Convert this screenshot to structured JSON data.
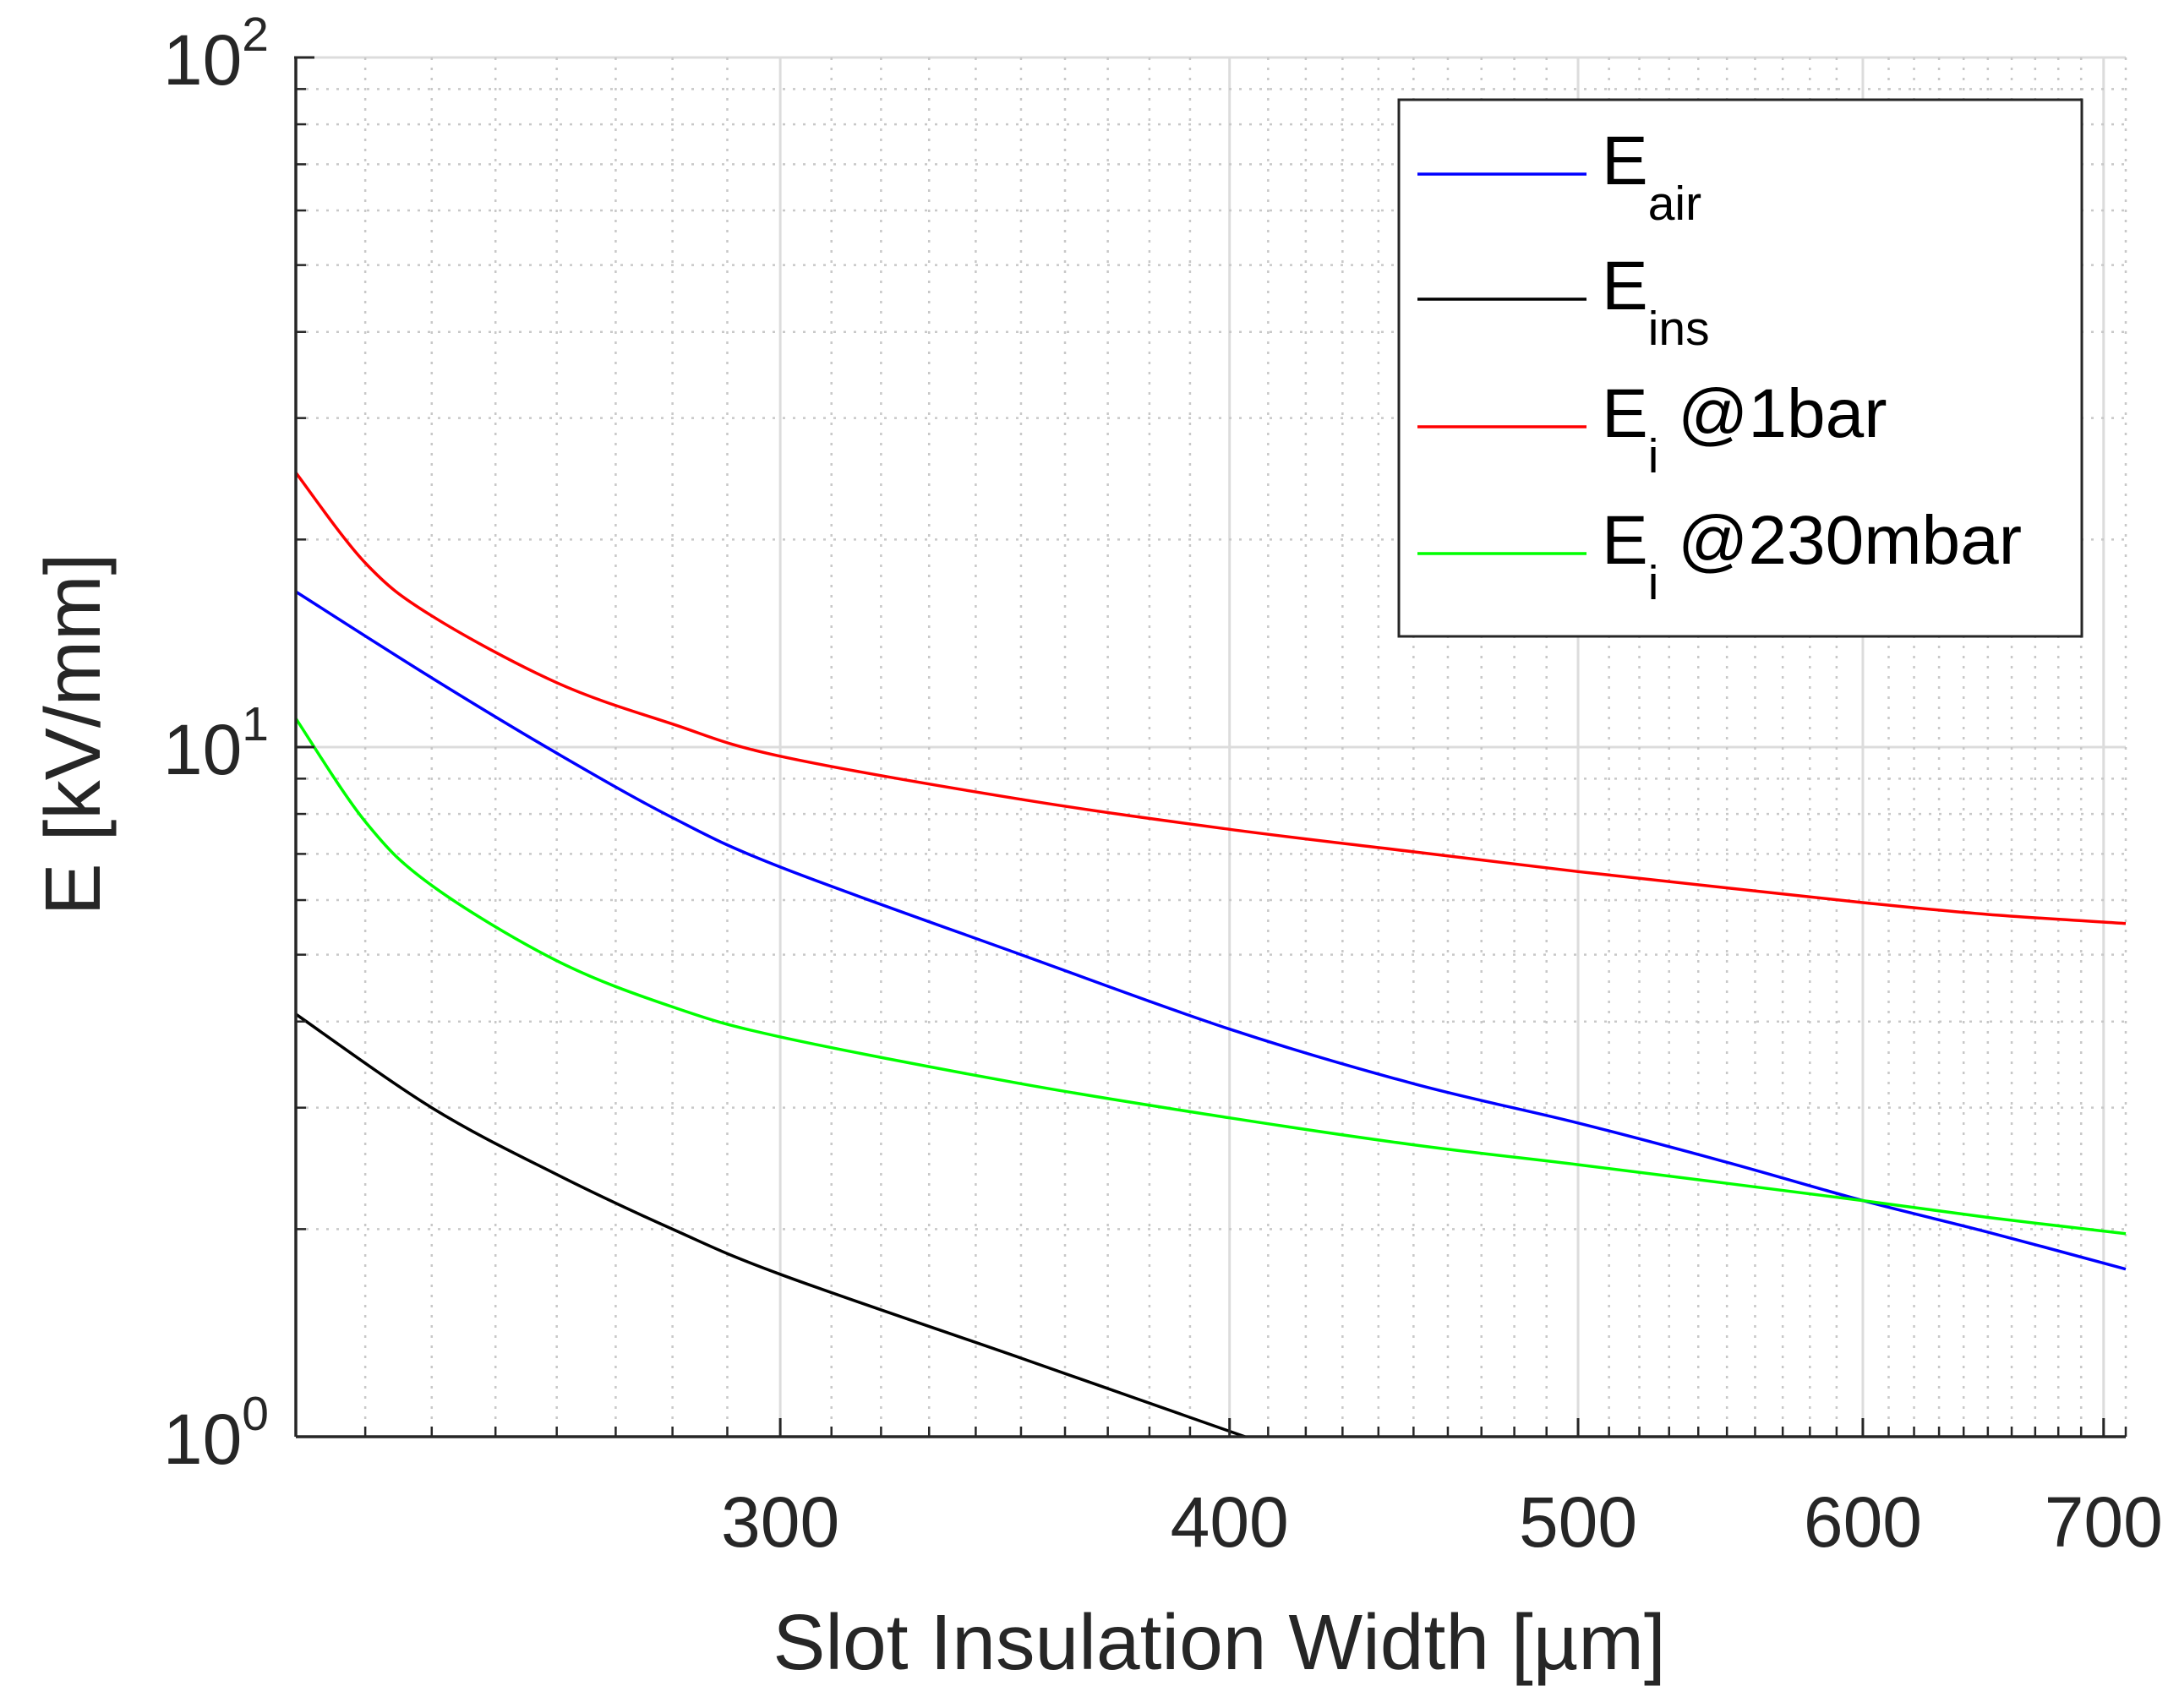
{
  "chart_data": {
    "type": "line",
    "title": "",
    "xlabel": "Slot Insulation Width [µm]",
    "ylabel": "E [kV/mm]",
    "xscale": "log",
    "yscale": "log",
    "xlim": [
      220,
      710
    ],
    "ylim": [
      1,
      100
    ],
    "xticks": [
      300,
      400,
      500,
      600,
      700
    ],
    "xtick_labels": [
      "300",
      "400",
      "500",
      "600",
      "700"
    ],
    "yticks": [
      1,
      10,
      100
    ],
    "ytick_labels": [
      {
        "base": "10",
        "exp": "0"
      },
      {
        "base": "10",
        "exp": "1"
      },
      {
        "base": "10",
        "exp": "2"
      }
    ],
    "grid": true,
    "legend_position": "top-right",
    "series": [
      {
        "name": "E_air",
        "legend_base": "E",
        "legend_sub": "air",
        "legend_rest": "",
        "color": "#0000ff",
        "x": [
          220,
          240,
          260,
          280,
          300,
          350,
          400,
          450,
          500,
          550,
          600,
          650,
          710
        ],
        "y": [
          16.8,
          12.6,
          9.8,
          7.9,
          6.7,
          5.0,
          3.9,
          3.25,
          2.85,
          2.5,
          2.2,
          1.98,
          1.75
        ]
      },
      {
        "name": "E_ins",
        "legend_base": "E",
        "legend_sub": "ins",
        "legend_rest": "",
        "color": "#000000",
        "x": [
          220,
          240,
          260,
          280,
          300,
          350,
          404
        ],
        "y": [
          4.1,
          3.0,
          2.4,
          2.0,
          1.72,
          1.3,
          1.0
        ]
      },
      {
        "name": "E_i @1bar",
        "legend_base": "E",
        "legend_sub": "i",
        "legend_rest": " @1bar",
        "color": "#ff0000",
        "x": [
          220,
          230,
          240,
          260,
          280,
          300,
          350,
          400,
          450,
          500,
          550,
          600,
          650,
          710
        ],
        "y": [
          25.0,
          18.5,
          15.5,
          12.4,
          10.8,
          9.7,
          8.4,
          7.6,
          7.05,
          6.6,
          6.25,
          5.95,
          5.72,
          5.55
        ]
      },
      {
        "name": "E_i @230mbar",
        "legend_base": "E",
        "legend_sub": "i",
        "legend_rest": " @230mbar",
        "color": "#00ff00",
        "x": [
          220,
          230,
          240,
          260,
          280,
          300,
          350,
          400,
          450,
          500,
          550,
          600,
          650,
          710
        ],
        "y": [
          11.0,
          7.8,
          6.3,
          4.9,
          4.2,
          3.8,
          3.25,
          2.9,
          2.65,
          2.48,
          2.33,
          2.2,
          2.08,
          1.97
        ]
      }
    ]
  }
}
